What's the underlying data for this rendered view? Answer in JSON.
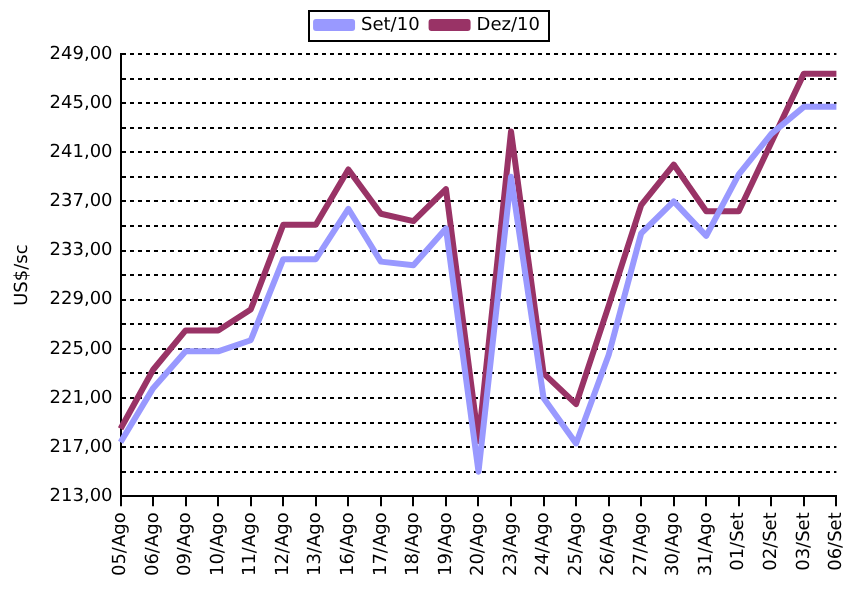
{
  "chart_data": {
    "type": "line",
    "ylabel": "US$/sc",
    "categories": [
      "05/Ago",
      "06/Ago",
      "09/Ago",
      "10/Ago",
      "11/Ago",
      "12/Ago",
      "13/Ago",
      "16/Ago",
      "17/Ago",
      "18/Ago",
      "19/Ago",
      "20/Ago",
      "23/Ago",
      "24/Ago",
      "25/Ago",
      "26/Ago",
      "27/Ago",
      "30/Ago",
      "31/Ago",
      "01/Set",
      "02/Set",
      "03/Set",
      "06/Set"
    ],
    "series": [
      {
        "name": "Set/10",
        "color": "#9999ff",
        "values": [
          217.4,
          221.8,
          224.8,
          224.8,
          225.7,
          232.3,
          232.3,
          236.4,
          232.1,
          231.8,
          234.8,
          215.0,
          239.0,
          221.0,
          217.3,
          224.5,
          234.4,
          237.0,
          234.2,
          239.2,
          242.5,
          244.7,
          244.7
        ]
      },
      {
        "name": "Dez/10",
        "color": "#993366",
        "values": [
          218.5,
          223.3,
          226.5,
          226.5,
          228.2,
          235.1,
          235.1,
          239.6,
          236.0,
          235.4,
          238.0,
          217.5,
          242.7,
          223.0,
          220.5,
          228.5,
          236.7,
          240.0,
          236.2,
          236.2,
          241.8,
          247.4,
          247.4
        ]
      }
    ],
    "ylim": [
      213,
      249
    ],
    "yticks": [
      {
        "value": 213,
        "label": "213,00"
      },
      {
        "value": 215,
        "label": null
      },
      {
        "value": 217,
        "label": "217,00"
      },
      {
        "value": 219,
        "label": null
      },
      {
        "value": 221,
        "label": "221,00"
      },
      {
        "value": 223,
        "label": null
      },
      {
        "value": 225,
        "label": "225,00"
      },
      {
        "value": 227,
        "label": null
      },
      {
        "value": 229,
        "label": "229,00"
      },
      {
        "value": 231,
        "label": null
      },
      {
        "value": 233,
        "label": "233,00"
      },
      {
        "value": 235,
        "label": null
      },
      {
        "value": 237,
        "label": "237,00"
      },
      {
        "value": 239,
        "label": null
      },
      {
        "value": 241,
        "label": "241,00"
      },
      {
        "value": 243,
        "label": null
      },
      {
        "value": 245,
        "label": "245,00"
      },
      {
        "value": 247,
        "label": null
      },
      {
        "value": 249,
        "label": "249,00"
      }
    ],
    "grid": "y",
    "legend": "top",
    "marker": "none",
    "line_style": "solid"
  }
}
